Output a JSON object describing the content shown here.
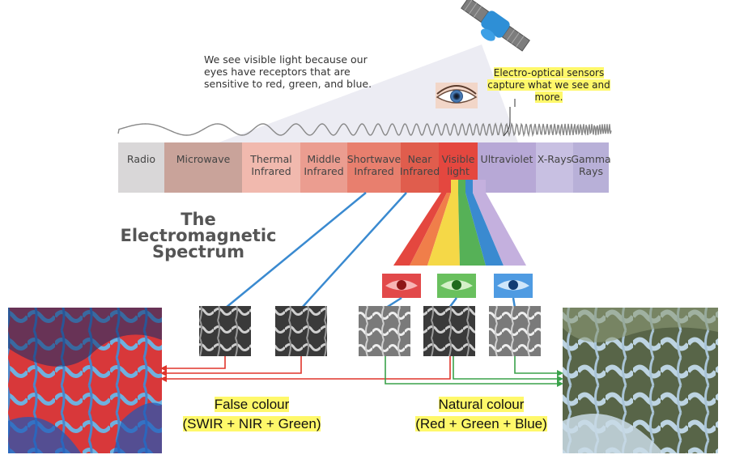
{
  "intro_text": "We see visible light because our eyes have receptors that are sensitive to red, green, and blue.",
  "sensor_text": "Electro-optical sensors capture what we see and more.",
  "spectrum_title": "The Electromagnetic Spectrum",
  "bands": [
    {
      "label": "Radio",
      "color": "#d9d7d8"
    },
    {
      "label": "Microwave",
      "color": "#c9a39a"
    },
    {
      "label": "Thermal Infrared",
      "color": "#f1b9ae"
    },
    {
      "label": "Middle Infrared",
      "color": "#eb9d90"
    },
    {
      "label": "Shortwave Infrared",
      "color": "#e87f6e"
    },
    {
      "label": "Near Infrared",
      "color": "#e05d4d"
    },
    {
      "label": "Visible light",
      "color": "#e4473f"
    },
    {
      "label": "Ultraviolet",
      "color": "#b7a8d6"
    },
    {
      "label": "X-Rays",
      "color": "#c8c0e2"
    },
    {
      "label": "Gamma Rays",
      "color": "#b8b0d8"
    }
  ],
  "false_caption": {
    "line1": "False colour",
    "line2": "(SWIR + NIR + Green)"
  },
  "natural_caption": {
    "line1": "Natural colour",
    "line2": "(Red + Green + Blue)"
  },
  "colors": {
    "red": "#e0352b",
    "green": "#3aa24a",
    "blue": "#3a8ad0",
    "highlight": "#fff86a"
  }
}
